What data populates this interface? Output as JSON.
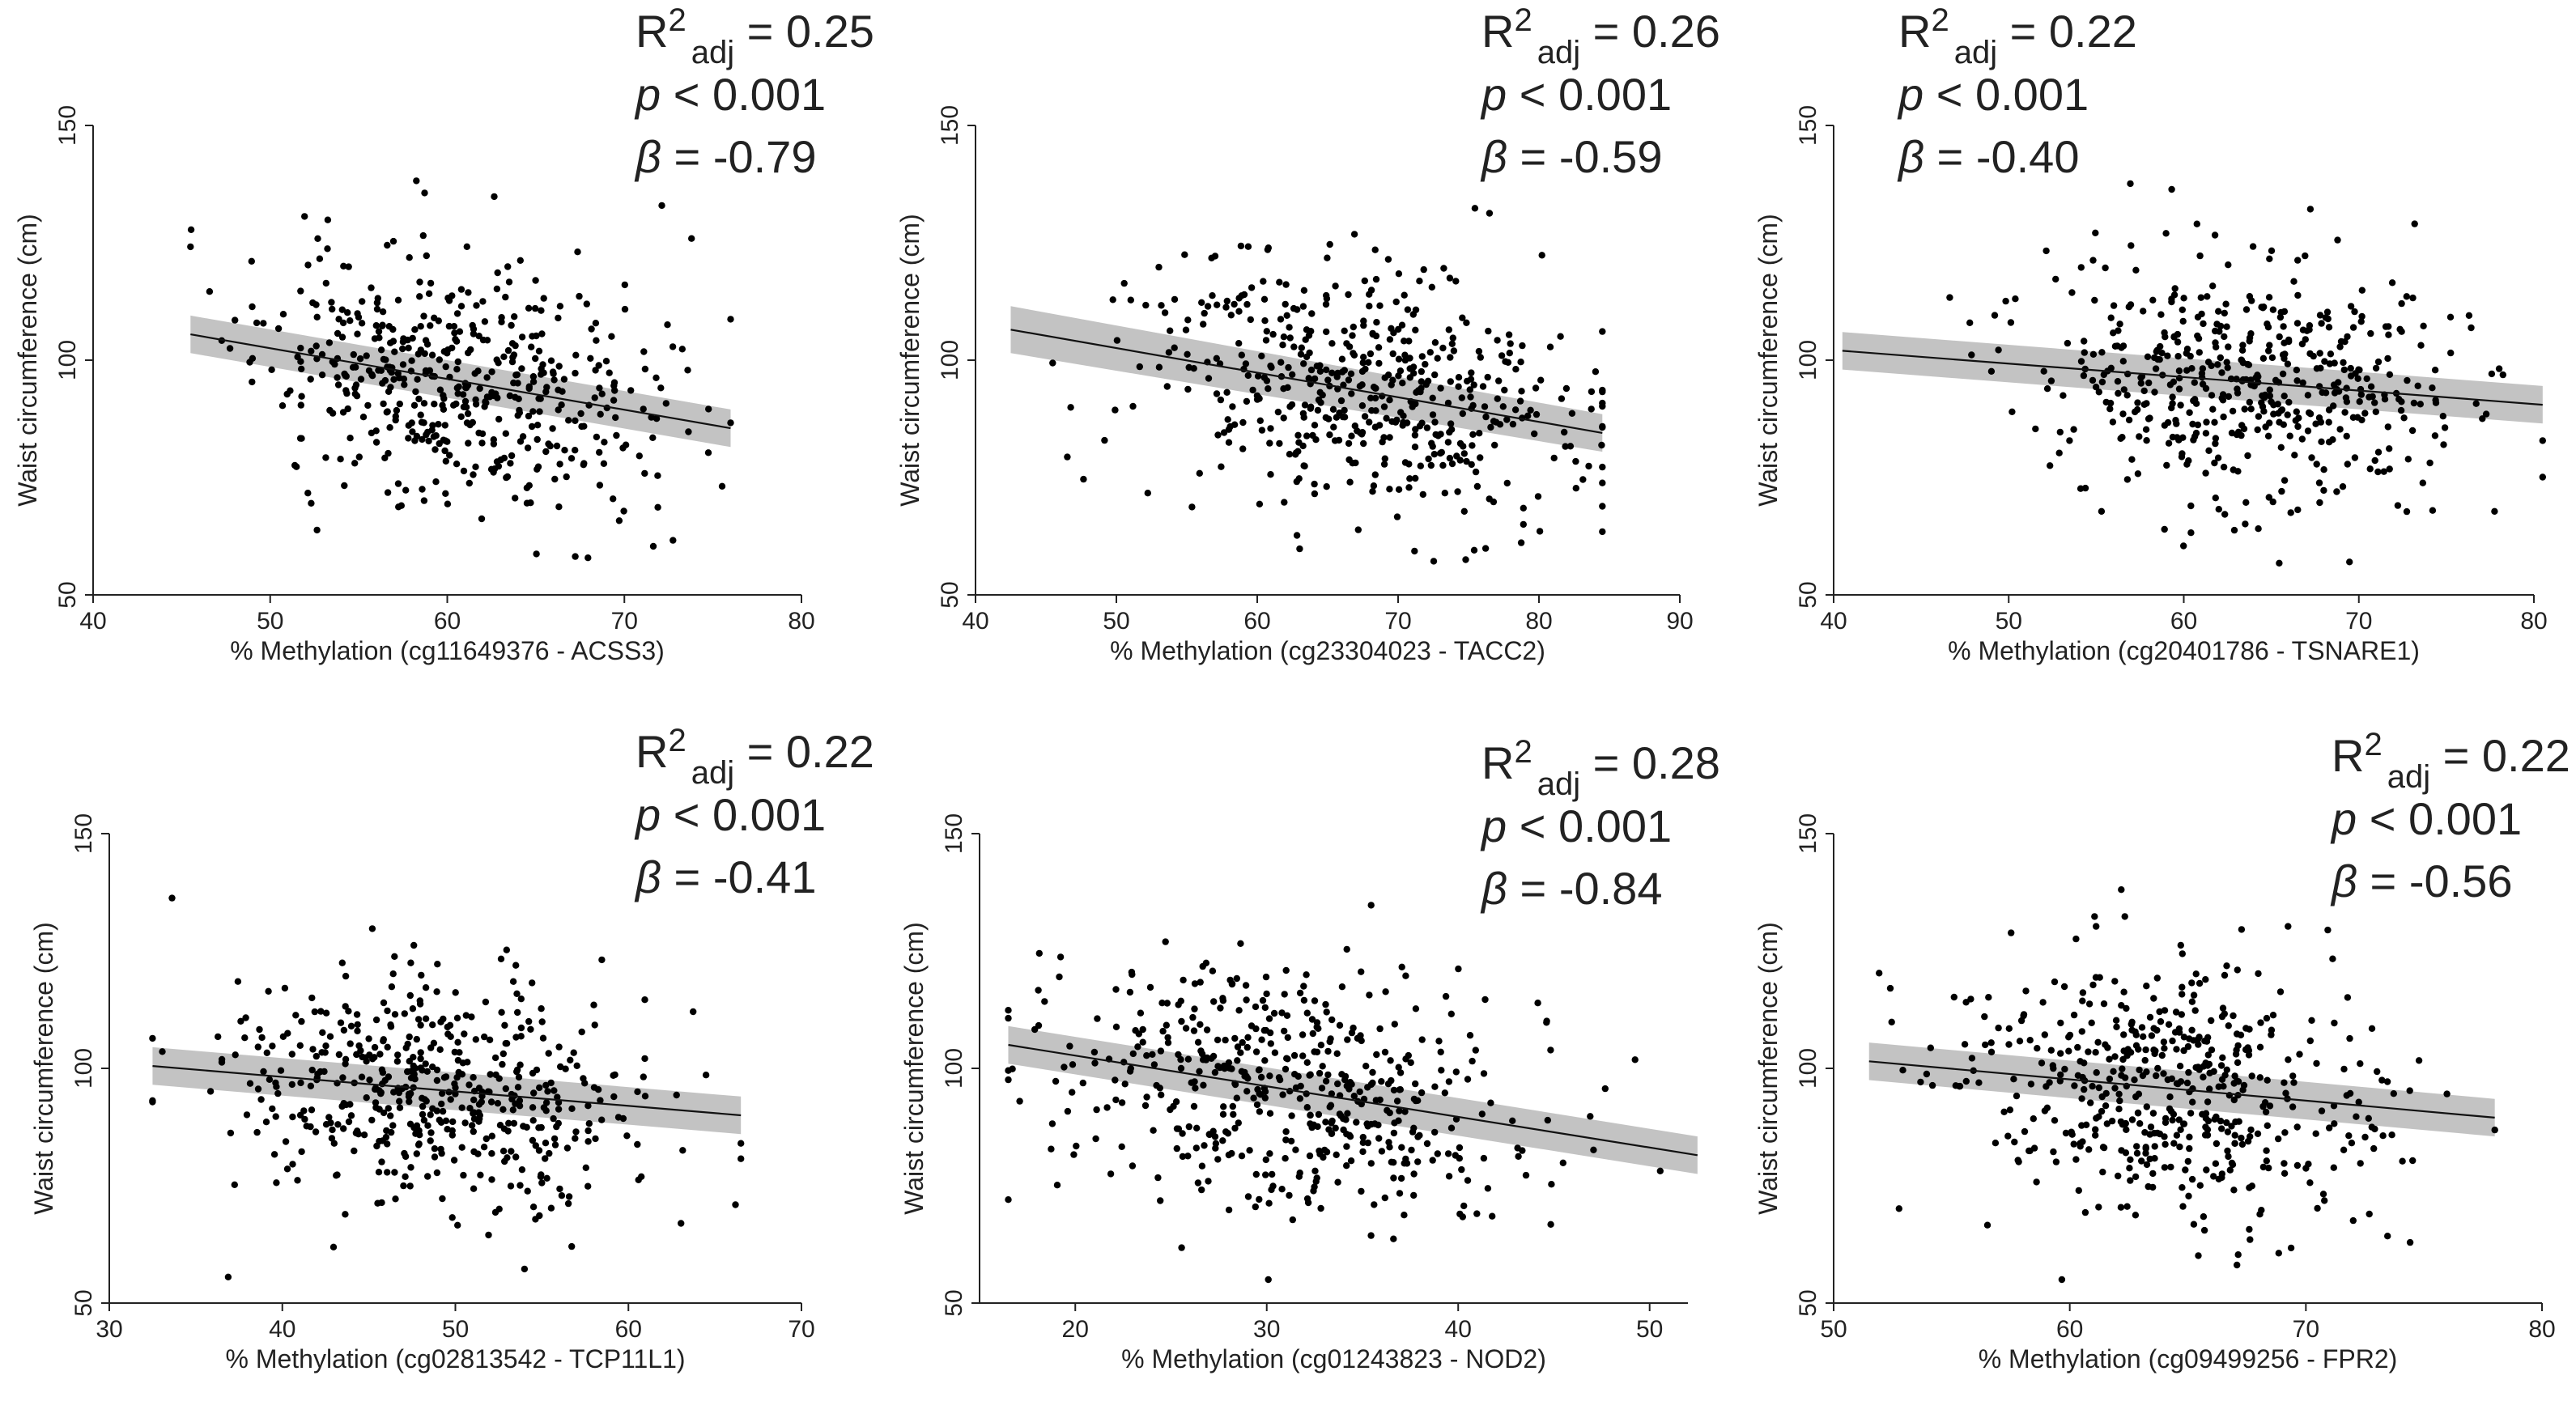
{
  "chart_data": [
    {
      "type": "scatter",
      "title": "",
      "xlabel": "% Methylation (cg11649376 - ACSS3)",
      "ylabel": "Waist circumference (cm)",
      "xlim": [
        40,
        80
      ],
      "ylim": [
        50,
        150
      ],
      "xticks": [
        "40",
        "50",
        "60",
        "70",
        "80"
      ],
      "yticks": [
        "50",
        "100",
        "150"
      ],
      "stats": {
        "r2_prefix": "R",
        "r2_sup": "2",
        "r2_sub": "adj",
        "r2_value": " = 0.25",
        "p_symbol": "p",
        "p_value": " < 0.001",
        "beta_symbol": "β",
        "beta_value": " = -0.79"
      },
      "fit_line": {
        "x": [
          45.5,
          76.0
        ],
        "y": [
          105.5,
          85.5
        ]
      },
      "fit_ci": {
        "lower": [
          101.5,
          81.5
        ],
        "upper": [
          109.5,
          89.5
        ]
      },
      "scatter": {
        "n": 500,
        "x_mean": 60.5,
        "x_sd": 5.6,
        "x_min": 45.5,
        "x_max": 76.0,
        "y_sd": 13.0,
        "seed": 11
      }
    },
    {
      "type": "scatter",
      "title": "",
      "xlabel": "% Methylation (cg23304023 - TACC2)",
      "ylabel": "Waist circumference (cm)",
      "xlim": [
        40,
        90
      ],
      "ylim": [
        50,
        150
      ],
      "xticks": [
        "40",
        "50",
        "60",
        "70",
        "80",
        "90"
      ],
      "yticks": [
        "50",
        "100",
        "150"
      ],
      "stats": {
        "r2_prefix": "R",
        "r2_sup": "2",
        "r2_sub": "adj",
        "r2_value": " = 0.26",
        "p_symbol": "p",
        "p_value": " < 0.001",
        "beta_symbol": "β",
        "beta_value": " = -0.59"
      },
      "fit_line": {
        "x": [
          42.5,
          84.5
        ],
        "y": [
          106.5,
          84.5
        ]
      },
      "fit_ci": {
        "lower": [
          101.5,
          80.5
        ],
        "upper": [
          111.5,
          88.5
        ]
      },
      "scatter": {
        "n": 500,
        "x_mean": 67.0,
        "x_sd": 7.5,
        "x_min": 42.5,
        "x_max": 84.5,
        "y_sd": 13.0,
        "seed": 23
      }
    },
    {
      "type": "scatter",
      "title": "",
      "xlabel": "% Methylation (cg20401786 - TSNARE1)",
      "ylabel": "Waist circumference (cm)",
      "xlim": [
        40,
        80
      ],
      "ylim": [
        50,
        150
      ],
      "xticks": [
        "40",
        "50",
        "60",
        "70",
        "80"
      ],
      "yticks": [
        "50",
        "100",
        "150"
      ],
      "stats": {
        "r2_prefix": "R",
        "r2_sup": "2",
        "r2_sub": "adj",
        "r2_value": " = 0.22",
        "p_symbol": "p",
        "p_value": " < 0.001",
        "beta_symbol": "β",
        "beta_value": " = -0.40"
      },
      "fit_line": {
        "x": [
          40.5,
          80.5
        ],
        "y": [
          102.0,
          90.5
        ]
      },
      "fit_ci": {
        "lower": [
          98.0,
          86.5
        ],
        "upper": [
          106.0,
          94.5
        ]
      },
      "scatter": {
        "n": 500,
        "x_mean": 64.0,
        "x_sd": 6.0,
        "x_min": 40.5,
        "x_max": 80.5,
        "y_sd": 13.0,
        "seed": 37
      }
    },
    {
      "type": "scatter",
      "title": "",
      "xlabel": "% Methylation (cg02813542 - TCP11L1)",
      "ylabel": "Waist circumference (cm)",
      "xlim": [
        30,
        70
      ],
      "ylim": [
        50,
        150
      ],
      "xticks": [
        "30",
        "40",
        "50",
        "60",
        "70"
      ],
      "yticks": [
        "50",
        "100",
        "150"
      ],
      "stats": {
        "r2_prefix": "R",
        "r2_sup": "2",
        "r2_sub": "adj",
        "r2_value": " = 0.22",
        "p_symbol": "p",
        "p_value": " < 0.001",
        "beta_symbol": "β",
        "beta_value": " = -0.41"
      },
      "fit_line": {
        "x": [
          32.5,
          66.5
        ],
        "y": [
          100.5,
          90.0
        ]
      },
      "fit_ci": {
        "lower": [
          96.5,
          86.0
        ],
        "upper": [
          104.5,
          94.0
        ]
      },
      "scatter": {
        "n": 500,
        "x_mean": 49.0,
        "x_sd": 6.0,
        "x_min": 32.5,
        "x_max": 66.5,
        "y_sd": 13.0,
        "seed": 41
      }
    },
    {
      "type": "scatter",
      "title": "",
      "xlabel": "% Methylation (cg01243823 - NOD2)",
      "ylabel": "Waist circumference (cm)",
      "xlim": [
        15,
        52
      ],
      "ylim": [
        50,
        150
      ],
      "xticks": [
        "20",
        "30",
        "40",
        "50"
      ],
      "yticks": [
        "50",
        "100",
        "150"
      ],
      "stats": {
        "r2_prefix": "R",
        "r2_sup": "2",
        "r2_sub": "adj",
        "r2_value": " = 0.28",
        "p_symbol": "p",
        "p_value": " < 0.001",
        "beta_symbol": "β",
        "beta_value": " = -0.84"
      },
      "fit_line": {
        "x": [
          16.5,
          52.5
        ],
        "y": [
          105.0,
          81.5
        ]
      },
      "fit_ci": {
        "lower": [
          101.0,
          77.5
        ],
        "upper": [
          109.0,
          85.5
        ]
      },
      "scatter": {
        "n": 500,
        "x_mean": 31.0,
        "x_sd": 6.0,
        "x_min": 16.5,
        "x_max": 52.5,
        "y_sd": 13.0,
        "seed": 53
      }
    },
    {
      "type": "scatter",
      "title": "",
      "xlabel": "% Methylation (cg09499256 - FPR2)",
      "ylabel": "Waist circumference (cm)",
      "xlim": [
        50,
        80
      ],
      "ylim": [
        50,
        150
      ],
      "xticks": [
        "50",
        "60",
        "70",
        "80"
      ],
      "yticks": [
        "50",
        "100",
        "150"
      ],
      "stats": {
        "r2_prefix": "R",
        "r2_sup": "2",
        "r2_sub": "adj",
        "r2_value": " = 0.22",
        "p_symbol": "p",
        "p_value": " < 0.001",
        "beta_symbol": "β",
        "beta_value": " = -0.56"
      },
      "fit_line": {
        "x": [
          51.5,
          78.0
        ],
        "y": [
          101.5,
          89.5
        ]
      },
      "fit_ci": {
        "lower": [
          97.5,
          85.5
        ],
        "upper": [
          105.5,
          93.5
        ]
      },
      "scatter": {
        "n": 500,
        "x_mean": 64.0,
        "x_sd": 4.5,
        "x_min": 51.5,
        "x_max": 78.0,
        "y_sd": 13.0,
        "seed": 67
      }
    }
  ]
}
